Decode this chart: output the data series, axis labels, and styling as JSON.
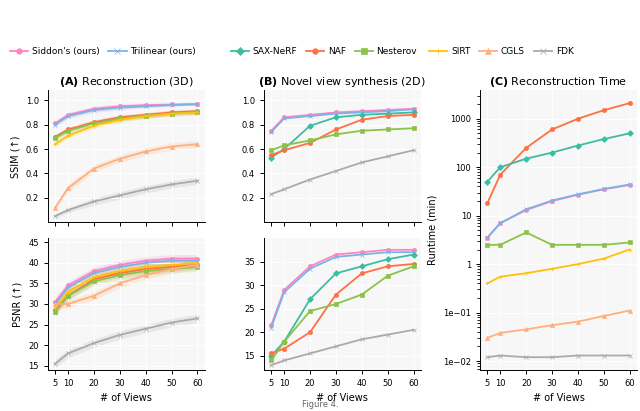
{
  "views": [
    5,
    10,
    20,
    30,
    40,
    50,
    60
  ],
  "title_A": "(A) Reconstruction (3D)",
  "title_B": "(B) Novel view synthesis (2D)",
  "title_C": "(C) Reconstruction Time",
  "xlabel": "# of Views",
  "ylabel_ssim": "SSIM (↑)",
  "ylabel_psnr": "PSNR (↑)",
  "ylabel_time": "Runtime (min)",
  "A_ssim_siddon": [
    0.81,
    0.88,
    0.93,
    0.95,
    0.96,
    0.965,
    0.97
  ],
  "A_ssim_siddon_lo": [
    0.79,
    0.86,
    0.91,
    0.93,
    0.945,
    0.955,
    0.965
  ],
  "A_ssim_siddon_hi": [
    0.83,
    0.9,
    0.95,
    0.97,
    0.975,
    0.975,
    0.975
  ],
  "A_ssim_trilinear": [
    0.8,
    0.87,
    0.92,
    0.94,
    0.95,
    0.96,
    0.965
  ],
  "A_ssim_trilinear_lo": [
    0.78,
    0.85,
    0.9,
    0.92,
    0.94,
    0.95,
    0.96
  ],
  "A_ssim_trilinear_hi": [
    0.82,
    0.89,
    0.94,
    0.96,
    0.96,
    0.97,
    0.97
  ],
  "A_ssim_naf": [
    0.7,
    0.76,
    0.82,
    0.86,
    0.88,
    0.9,
    0.91
  ],
  "A_ssim_naf_lo": [
    0.68,
    0.74,
    0.8,
    0.84,
    0.86,
    0.88,
    0.89
  ],
  "A_ssim_naf_hi": [
    0.72,
    0.78,
    0.84,
    0.88,
    0.9,
    0.92,
    0.93
  ],
  "A_ssim_nesterov": [
    0.69,
    0.75,
    0.81,
    0.85,
    0.87,
    0.89,
    0.9
  ],
  "A_ssim_nesterov_lo": [
    0.67,
    0.73,
    0.79,
    0.83,
    0.85,
    0.87,
    0.88
  ],
  "A_ssim_nesterov_hi": [
    0.71,
    0.77,
    0.83,
    0.87,
    0.89,
    0.91,
    0.92
  ],
  "A_ssim_sirt": [
    0.64,
    0.71,
    0.79,
    0.84,
    0.87,
    0.89,
    0.9
  ],
  "A_ssim_sirt_lo": [
    0.62,
    0.69,
    0.77,
    0.82,
    0.85,
    0.87,
    0.88
  ],
  "A_ssim_sirt_hi": [
    0.66,
    0.73,
    0.81,
    0.86,
    0.89,
    0.91,
    0.92
  ],
  "A_ssim_cgls": [
    0.12,
    0.28,
    0.44,
    0.52,
    0.58,
    0.62,
    0.64
  ],
  "A_ssim_cgls_lo": [
    0.1,
    0.25,
    0.41,
    0.49,
    0.55,
    0.59,
    0.61
  ],
  "A_ssim_cgls_hi": [
    0.14,
    0.31,
    0.47,
    0.55,
    0.61,
    0.65,
    0.67
  ],
  "A_ssim_fdk": [
    0.05,
    0.1,
    0.17,
    0.22,
    0.27,
    0.31,
    0.34
  ],
  "A_ssim_fdk_lo": [
    0.03,
    0.08,
    0.14,
    0.19,
    0.24,
    0.28,
    0.31
  ],
  "A_ssim_fdk_hi": [
    0.07,
    0.12,
    0.2,
    0.25,
    0.3,
    0.34,
    0.37
  ],
  "A_psnr_siddon": [
    30.5,
    34.5,
    38.0,
    39.5,
    40.5,
    41.0,
    41.0
  ],
  "A_psnr_siddon_lo": [
    29.5,
    33.5,
    37.0,
    38.5,
    39.5,
    40.0,
    40.0
  ],
  "A_psnr_siddon_hi": [
    31.5,
    35.5,
    39.0,
    40.5,
    41.5,
    42.0,
    42.0
  ],
  "A_psnr_trilinear": [
    30.0,
    34.0,
    37.5,
    39.0,
    40.0,
    40.5,
    40.5
  ],
  "A_psnr_trilinear_lo": [
    29.0,
    33.0,
    36.5,
    38.0,
    39.0,
    39.5,
    39.5
  ],
  "A_psnr_trilinear_hi": [
    31.0,
    35.0,
    38.5,
    40.0,
    41.0,
    41.5,
    41.5
  ],
  "A_psnr_naf": [
    28.5,
    32.0,
    36.0,
    37.5,
    38.5,
    39.0,
    39.5
  ],
  "A_psnr_naf_lo": [
    27.5,
    31.0,
    35.0,
    36.5,
    37.5,
    38.0,
    38.5
  ],
  "A_psnr_naf_hi": [
    29.5,
    33.0,
    37.0,
    38.5,
    39.5,
    40.0,
    40.5
  ],
  "A_psnr_nesterov": [
    28.0,
    32.0,
    35.5,
    37.0,
    38.0,
    38.5,
    39.0
  ],
  "A_psnr_nesterov_lo": [
    27.0,
    31.0,
    34.5,
    36.0,
    37.0,
    37.5,
    38.0
  ],
  "A_psnr_nesterov_hi": [
    29.0,
    33.0,
    36.5,
    38.0,
    39.0,
    39.5,
    40.0
  ],
  "A_psnr_sirt": [
    29.0,
    33.0,
    36.5,
    38.0,
    39.0,
    39.5,
    40.0
  ],
  "A_psnr_sirt_lo": [
    28.0,
    32.0,
    35.5,
    37.0,
    38.0,
    38.5,
    39.0
  ],
  "A_psnr_sirt_hi": [
    30.0,
    34.0,
    37.5,
    39.0,
    40.0,
    40.5,
    41.0
  ],
  "A_psnr_cgls": [
    30.0,
    30.0,
    32.0,
    35.0,
    37.0,
    38.5,
    39.5
  ],
  "A_psnr_cgls_lo": [
    29.0,
    29.0,
    31.0,
    34.0,
    36.0,
    37.5,
    38.5
  ],
  "A_psnr_cgls_hi": [
    31.0,
    31.0,
    33.0,
    36.0,
    38.0,
    39.5,
    40.5
  ],
  "A_psnr_fdk": [
    15.5,
    18.0,
    20.5,
    22.5,
    24.0,
    25.5,
    26.5
  ],
  "A_psnr_fdk_lo": [
    14.5,
    17.0,
    19.5,
    21.5,
    23.0,
    24.5,
    25.5
  ],
  "A_psnr_fdk_hi": [
    16.5,
    19.0,
    21.5,
    23.5,
    25.0,
    26.5,
    27.5
  ],
  "B_ssim_siddon": [
    0.75,
    0.86,
    0.88,
    0.9,
    0.91,
    0.92,
    0.93
  ],
  "B_ssim_trilinear": [
    0.74,
    0.85,
    0.87,
    0.89,
    0.9,
    0.91,
    0.925
  ],
  "B_ssim_saxnerf": [
    0.53,
    0.6,
    0.79,
    0.86,
    0.88,
    0.89,
    0.9
  ],
  "B_ssim_naf": [
    0.55,
    0.59,
    0.65,
    0.76,
    0.84,
    0.87,
    0.88
  ],
  "B_ssim_nesterov": [
    0.59,
    0.63,
    0.67,
    0.72,
    0.75,
    0.76,
    0.77
  ],
  "B_ssim_fdk": [
    0.23,
    0.27,
    0.35,
    0.42,
    0.49,
    0.54,
    0.59
  ],
  "B_psnr_siddon": [
    21.5,
    29.0,
    34.0,
    36.5,
    37.0,
    37.5,
    37.5
  ],
  "B_psnr_trilinear": [
    21.0,
    28.5,
    33.5,
    36.0,
    36.5,
    37.0,
    37.0
  ],
  "B_psnr_saxnerf": [
    15.0,
    18.0,
    27.0,
    32.5,
    34.0,
    35.5,
    36.5
  ],
  "B_psnr_naf": [
    15.5,
    16.5,
    20.0,
    28.0,
    32.5,
    34.0,
    34.5
  ],
  "B_psnr_nesterov": [
    14.0,
    18.0,
    24.5,
    26.0,
    28.0,
    32.0,
    34.0
  ],
  "B_psnr_fdk": [
    13.0,
    14.0,
    15.5,
    17.0,
    18.5,
    19.5,
    20.5
  ],
  "C_time_siddon": [
    3.5,
    7.0,
    13.0,
    20.0,
    27.0,
    35.0,
    43.0
  ],
  "C_time_trilinear": [
    3.5,
    7.0,
    13.5,
    20.5,
    27.5,
    35.5,
    44.0
  ],
  "C_time_saxnerf": [
    50.0,
    100.0,
    150.0,
    200.0,
    280.0,
    380.0,
    500.0
  ],
  "C_time_naf": [
    18.0,
    70.0,
    250.0,
    600.0,
    1000.0,
    1500.0,
    2100.0
  ],
  "C_time_nesterov": [
    2.5,
    2.5,
    4.5,
    2.5,
    2.5,
    2.5,
    2.8
  ],
  "C_time_sirt": [
    0.4,
    0.55,
    0.65,
    0.8,
    1.0,
    1.3,
    2.0
  ],
  "C_time_cgls": [
    0.03,
    0.038,
    0.045,
    0.055,
    0.065,
    0.085,
    0.11
  ],
  "C_time_fdk": [
    0.012,
    0.013,
    0.012,
    0.012,
    0.013,
    0.013,
    0.013
  ],
  "color_siddon": "#ff85c2",
  "color_trilinear": "#7ab3e8",
  "color_saxnerf": "#3dbda0",
  "color_naf": "#ff7043",
  "color_nesterov": "#8bc34a",
  "color_sirt": "#ffc107",
  "color_cgls": "#ffb07c",
  "color_fdk": "#aaaaaa"
}
